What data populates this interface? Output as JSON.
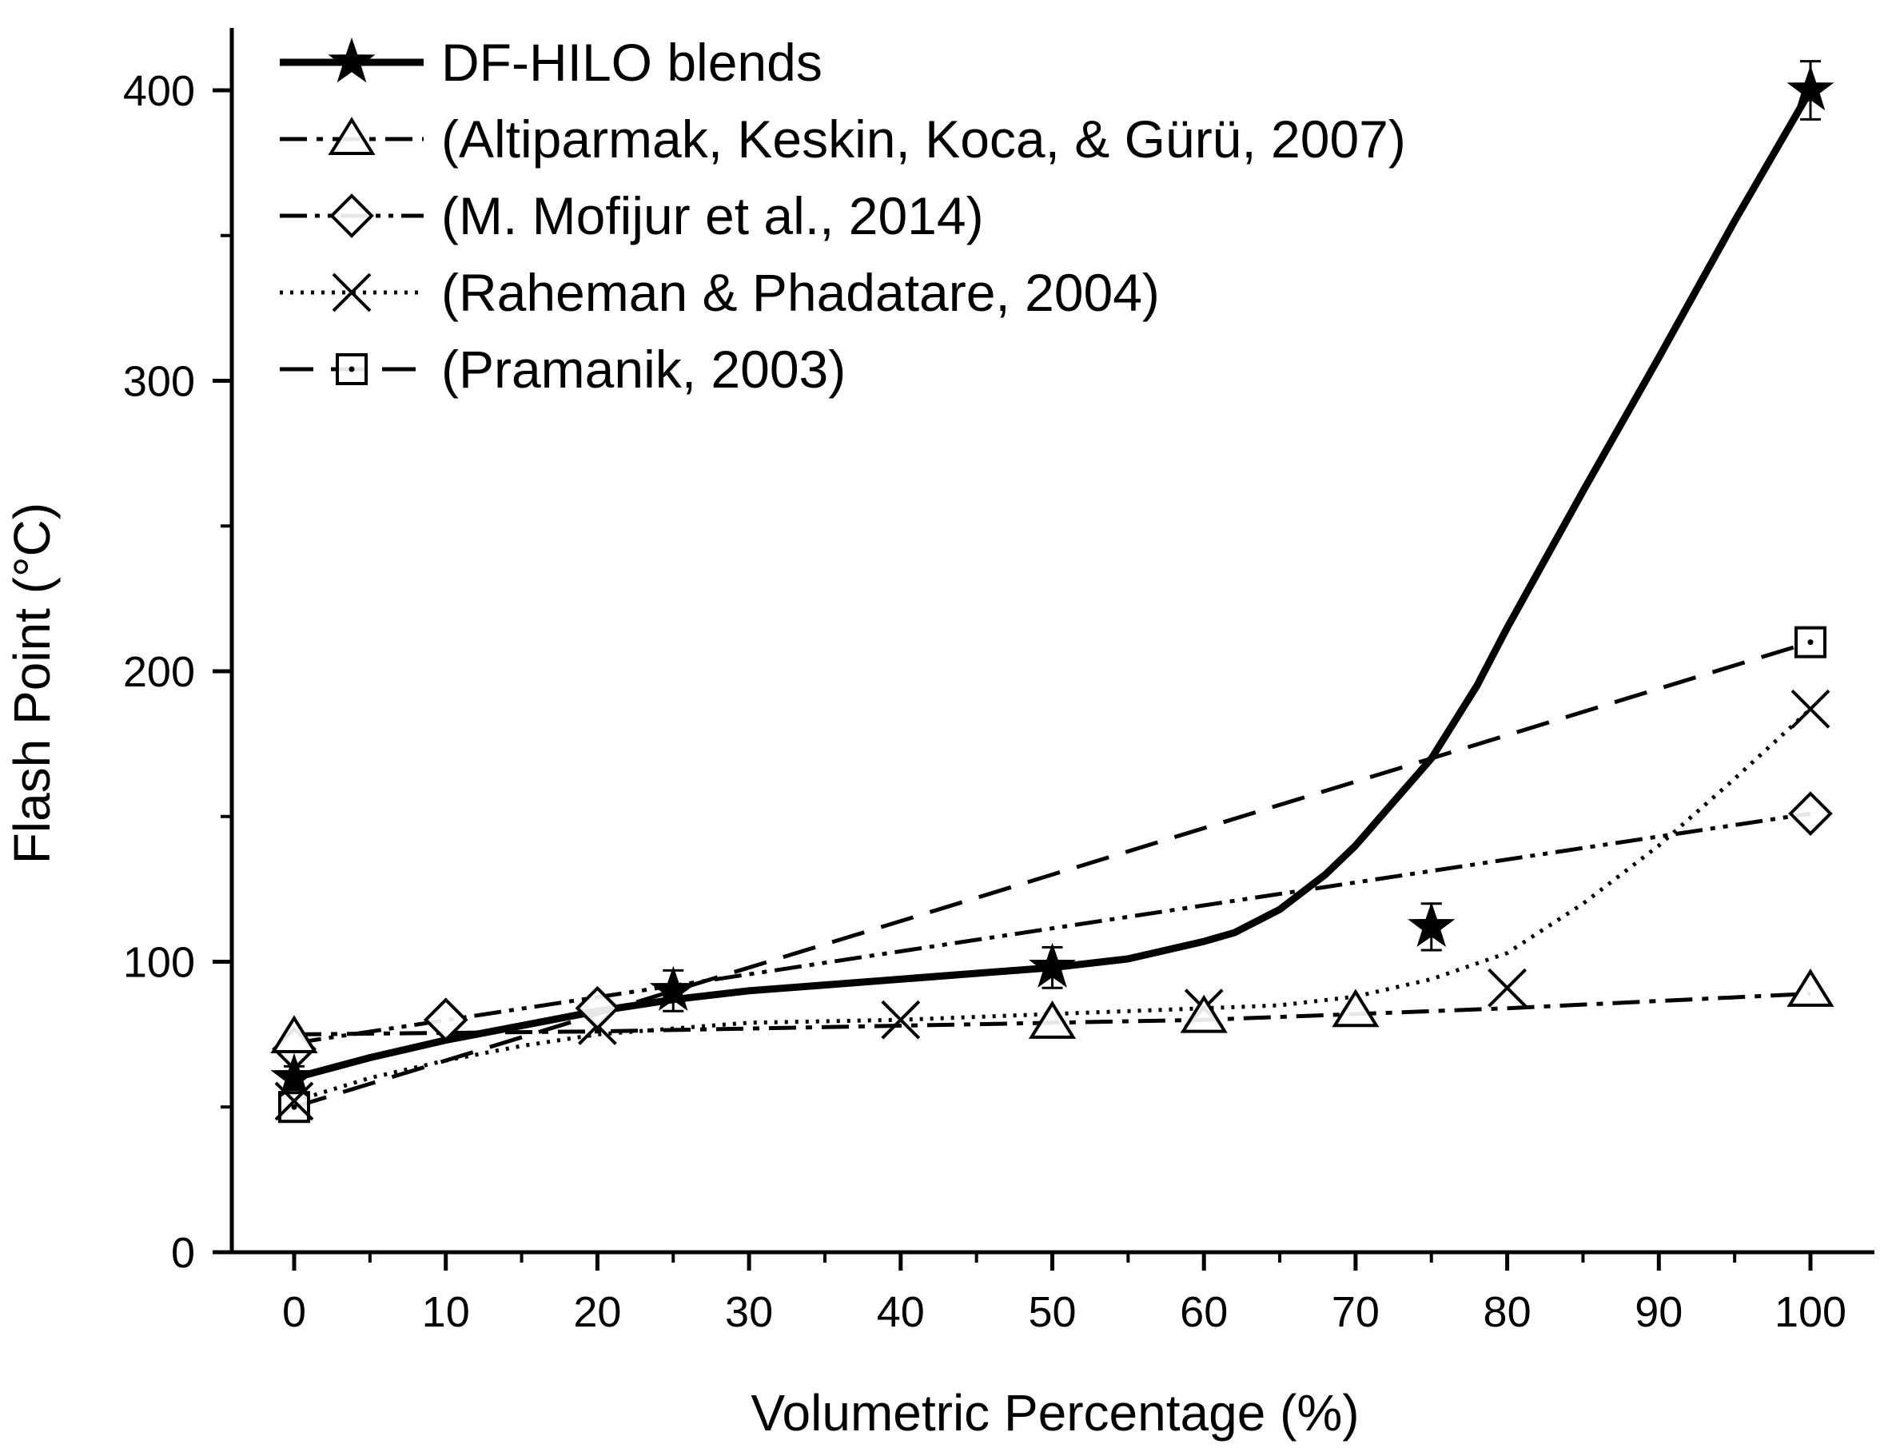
{
  "chart_data": {
    "type": "line",
    "title": "",
    "xlabel": "Volumetric Percentage (%)",
    "ylabel": "Flash Point (°C)",
    "xlim": [
      -5,
      104
    ],
    "ylim": [
      0,
      420
    ],
    "xticks": [
      0,
      10,
      20,
      30,
      40,
      50,
      60,
      70,
      80,
      90,
      100
    ],
    "yticks": [
      0,
      100,
      200,
      300,
      400
    ],
    "grid": false,
    "legend_position": "top-left",
    "series": [
      {
        "name": "DF-HILO blends",
        "style": "solid",
        "marker": "filled-star",
        "x": [
          0,
          25,
          50,
          75,
          100
        ],
        "y": [
          60,
          90,
          98,
          112,
          400
        ],
        "error": [
          4,
          7,
          7,
          8,
          10
        ],
        "fit": [
          [
            0,
            60
          ],
          [
            5,
            67
          ],
          [
            10,
            73
          ],
          [
            15,
            78
          ],
          [
            20,
            83
          ],
          [
            25,
            87
          ],
          [
            30,
            90
          ],
          [
            35,
            92
          ],
          [
            40,
            94
          ],
          [
            45,
            96
          ],
          [
            50,
            98
          ],
          [
            55,
            101
          ],
          [
            60,
            107
          ],
          [
            62,
            110
          ],
          [
            65,
            118
          ],
          [
            68,
            130
          ],
          [
            70,
            140
          ],
          [
            72,
            152
          ],
          [
            75,
            170
          ],
          [
            78,
            195
          ],
          [
            80,
            215
          ],
          [
            85,
            262
          ],
          [
            90,
            308
          ],
          [
            95,
            355
          ],
          [
            100,
            400
          ]
        ]
      },
      {
        "name": "(Altiparmak, Keskin, Koca, & Gürü, 2007)",
        "style": "dash-dot",
        "marker": "open-triangle",
        "x": [
          0,
          50,
          60,
          70,
          100
        ],
        "y": [
          74,
          79,
          81,
          83,
          90
        ],
        "fit": [
          [
            0,
            75
          ],
          [
            20,
            76
          ],
          [
            40,
            78
          ],
          [
            60,
            80
          ],
          [
            80,
            84
          ],
          [
            100,
            89
          ]
        ]
      },
      {
        "name": "(M. Mofijur et al., 2014)",
        "style": "dash-dot-dot",
        "marker": "open-diamond",
        "x": [
          0,
          10,
          20,
          100
        ],
        "y": [
          70,
          80,
          84,
          151
        ],
        "fit": [
          [
            0,
            72
          ],
          [
            100,
            151
          ]
        ]
      },
      {
        "name": "(Raheman & Phadatare, 2004)",
        "style": "dotted",
        "marker": "x",
        "x": [
          0,
          20,
          40,
          60,
          80,
          100
        ],
        "y": [
          52,
          78,
          80,
          84,
          91,
          187
        ],
        "fit": [
          [
            0,
            52
          ],
          [
            5,
            60
          ],
          [
            10,
            66
          ],
          [
            15,
            71
          ],
          [
            20,
            75
          ],
          [
            30,
            79
          ],
          [
            40,
            80
          ],
          [
            50,
            82
          ],
          [
            60,
            84
          ],
          [
            65,
            85
          ],
          [
            70,
            88
          ],
          [
            75,
            94
          ],
          [
            80,
            103
          ],
          [
            85,
            120
          ],
          [
            90,
            140
          ],
          [
            95,
            163
          ],
          [
            100,
            187
          ]
        ]
      },
      {
        "name": "(Pramanik, 2003)",
        "style": "long-dash",
        "marker": "open-square-dot",
        "x": [
          0,
          100
        ],
        "y": [
          50,
          210
        ],
        "fit": [
          [
            0,
            50
          ],
          [
            100,
            210
          ]
        ]
      }
    ]
  }
}
